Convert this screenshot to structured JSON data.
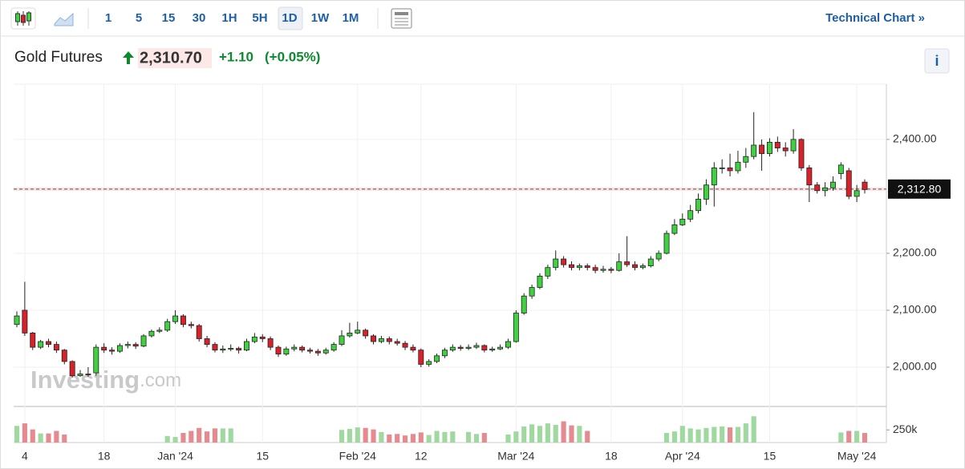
{
  "toolbar": {
    "intervals": [
      "1",
      "5",
      "15",
      "30",
      "1H",
      "5H",
      "1D",
      "1W",
      "1M"
    ],
    "technical_chart": "Technical Chart »"
  },
  "header": {
    "name": "Gold Futures",
    "price": "2,310.70",
    "change": "+1.10",
    "change_percent": "(+0.05%)",
    "info": "i"
  },
  "watermark": [
    "Investing",
    ".com"
  ],
  "chart_data": {
    "type": "candlestick",
    "categories": [
      null,
      "4",
      null,
      null,
      null,
      null,
      null,
      null,
      null,
      null,
      null,
      "18",
      null,
      null,
      null,
      null,
      null,
      null,
      null,
      null,
      "Jan '24",
      null,
      null,
      null,
      null,
      null,
      null,
      null,
      null,
      null,
      null,
      "15",
      null,
      null,
      null,
      null,
      null,
      null,
      null,
      null,
      null,
      null,
      null,
      "Feb '24",
      null,
      null,
      null,
      null,
      null,
      null,
      null,
      "12",
      null,
      null,
      null,
      null,
      null,
      null,
      null,
      null,
      null,
      null,
      null,
      "Mar '24",
      null,
      null,
      null,
      null,
      null,
      null,
      null,
      null,
      null,
      null,
      null,
      "18",
      null,
      null,
      null,
      null,
      null,
      null,
      null,
      null,
      "Apr '24",
      null,
      null,
      null,
      null,
      null,
      null,
      null,
      null,
      null,
      null,
      "15",
      null,
      null,
      null,
      null,
      null,
      null,
      null,
      null,
      null,
      null,
      "May '24",
      null
    ],
    "open": [
      2075,
      2100,
      2060,
      2035,
      2045,
      2040,
      2030,
      2010,
      1985,
      1988,
      1990,
      2035,
      2030,
      2028,
      2038,
      2040,
      2037,
      2055,
      2063,
      2065,
      2080,
      2090,
      2075,
      2073,
      2050,
      2040,
      2030,
      2032,
      2033,
      2030,
      2045,
      2053,
      2050,
      2035,
      2023,
      2032,
      2035,
      2030,
      2028,
      2025,
      2030,
      2040,
      2055,
      2060,
      2065,
      2055,
      2045,
      2050,
      2045,
      2042,
      2035,
      2030,
      2005,
      2010,
      2020,
      2030,
      2035,
      2033,
      2035,
      2038,
      2030,
      2032,
      2035,
      2045,
      2095,
      2125,
      2140,
      2160,
      2175,
      2190,
      2180,
      2175,
      2178,
      2175,
      2170,
      2172,
      2170,
      2185,
      2180,
      2175,
      2178,
      2190,
      2200,
      2235,
      2250,
      2260,
      2275,
      2295,
      2320,
      2350,
      2350,
      2345,
      2360,
      2370,
      2390,
      2375,
      2395,
      2385,
      2380,
      2400,
      2350,
      2320,
      2310,
      2315,
      2340,
      2345,
      2300,
      2325
    ],
    "high": [
      2098,
      2150,
      2062,
      2048,
      2050,
      2045,
      2032,
      2012,
      1995,
      2000,
      2040,
      2042,
      2035,
      2042,
      2045,
      2044,
      2058,
      2066,
      2070,
      2085,
      2100,
      2093,
      2080,
      2076,
      2055,
      2044,
      2038,
      2040,
      2036,
      2050,
      2060,
      2058,
      2054,
      2038,
      2036,
      2040,
      2038,
      2034,
      2032,
      2034,
      2044,
      2065,
      2078,
      2080,
      2068,
      2058,
      2055,
      2054,
      2050,
      2046,
      2040,
      2033,
      2014,
      2024,
      2034,
      2040,
      2039,
      2040,
      2043,
      2040,
      2036,
      2040,
      2050,
      2100,
      2130,
      2145,
      2165,
      2180,
      2205,
      2195,
      2186,
      2182,
      2182,
      2180,
      2178,
      2176,
      2200,
      2230,
      2186,
      2182,
      2195,
      2205,
      2240,
      2260,
      2270,
      2285,
      2305,
      2330,
      2360,
      2365,
      2375,
      2380,
      2385,
      2448,
      2400,
      2402,
      2405,
      2395,
      2418,
      2402,
      2355,
      2325,
      2325,
      2335,
      2360,
      2350,
      2320,
      2330
    ],
    "low": [
      2070,
      2055,
      2030,
      2032,
      2035,
      2025,
      2005,
      1982,
      1983,
      1983,
      1985,
      2025,
      2022,
      2025,
      2033,
      2032,
      2035,
      2052,
      2060,
      2062,
      2076,
      2070,
      2068,
      2045,
      2035,
      2026,
      2025,
      2028,
      2024,
      2028,
      2042,
      2044,
      2030,
      2018,
      2020,
      2028,
      2026,
      2024,
      2020,
      2022,
      2027,
      2037,
      2052,
      2058,
      2050,
      2040,
      2042,
      2040,
      2038,
      2030,
      2026,
      2000,
      2001,
      2007,
      2016,
      2027,
      2029,
      2030,
      2032,
      2026,
      2027,
      2030,
      2032,
      2043,
      2092,
      2120,
      2137,
      2155,
      2170,
      2175,
      2170,
      2170,
      2170,
      2165,
      2166,
      2165,
      2168,
      2176,
      2170,
      2172,
      2175,
      2186,
      2198,
      2232,
      2248,
      2255,
      2270,
      2285,
      2282,
      2340,
      2335,
      2340,
      2350,
      2365,
      2345,
      2370,
      2378,
      2370,
      2375,
      2345,
      2290,
      2305,
      2300,
      2310,
      2330,
      2295,
      2290,
      2305
    ],
    "close": [
      2090,
      2060,
      2035,
      2045,
      2040,
      2030,
      2010,
      1985,
      1988,
      1987,
      2035,
      2030,
      2028,
      2038,
      2040,
      2037,
      2055,
      2063,
      2065,
      2080,
      2090,
      2075,
      2073,
      2050,
      2040,
      2030,
      2032,
      2033,
      2030,
      2045,
      2053,
      2050,
      2035,
      2023,
      2032,
      2035,
      2030,
      2028,
      2025,
      2030,
      2040,
      2055,
      2060,
      2065,
      2055,
      2045,
      2050,
      2045,
      2042,
      2035,
      2030,
      2005,
      2010,
      2020,
      2030,
      2035,
      2033,
      2035,
      2038,
      2030,
      2032,
      2035,
      2045,
      2095,
      2125,
      2140,
      2160,
      2175,
      2190,
      2180,
      2175,
      2178,
      2175,
      2170,
      2172,
      2170,
      2185,
      2180,
      2175,
      2178,
      2190,
      2200,
      2235,
      2250,
      2260,
      2275,
      2295,
      2320,
      2350,
      2350,
      2345,
      2360,
      2370,
      2390,
      2375,
      2395,
      2385,
      2380,
      2400,
      2350,
      2320,
      2310,
      2315,
      2325,
      2355,
      2300,
      2310,
      2312
    ],
    "volume": [
      330000,
      380000,
      260000,
      180000,
      180000,
      230000,
      160000,
      null,
      null,
      null,
      null,
      null,
      null,
      null,
      null,
      null,
      null,
      null,
      null,
      130000,
      110000,
      190000,
      230000,
      290000,
      220000,
      280000,
      280000,
      280000,
      null,
      null,
      null,
      null,
      null,
      null,
      null,
      null,
      null,
      null,
      null,
      null,
      null,
      250000,
      270000,
      300000,
      290000,
      260000,
      210000,
      160000,
      170000,
      140000,
      170000,
      200000,
      150000,
      230000,
      210000,
      220000,
      null,
      210000,
      170000,
      190000,
      null,
      null,
      160000,
      220000,
      320000,
      360000,
      330000,
      380000,
      350000,
      420000,
      340000,
      330000,
      230000,
      null,
      null,
      null,
      null,
      null,
      null,
      null,
      null,
      null,
      190000,
      220000,
      330000,
      280000,
      260000,
      290000,
      310000,
      320000,
      300000,
      310000,
      380000,
      520000,
      null,
      null,
      null,
      null,
      null,
      null,
      null,
      null,
      null,
      null,
      200000,
      230000,
      230000,
      190000
    ],
    "ylim": [
      1931,
      2497
    ],
    "yticks": [
      {
        "value": 2000,
        "label": "2,000.00"
      },
      {
        "value": 2100,
        "label": "2,100.00"
      },
      {
        "value": 2200,
        "label": "2,200.00"
      },
      {
        "value": 2400,
        "label": "2,400.00"
      }
    ],
    "volume_ylim": [
      0,
      667000
    ],
    "volume_ticks": [
      {
        "value": 250000,
        "label": "250k"
      }
    ],
    "last_price": {
      "value": 2312.8,
      "label": "2,312.80"
    },
    "up_color": "#3fd13f",
    "down_color": "#d8222a",
    "volume_up_color": "#9fd99f",
    "volume_down_color": "#e58a8e",
    "grid": true
  }
}
